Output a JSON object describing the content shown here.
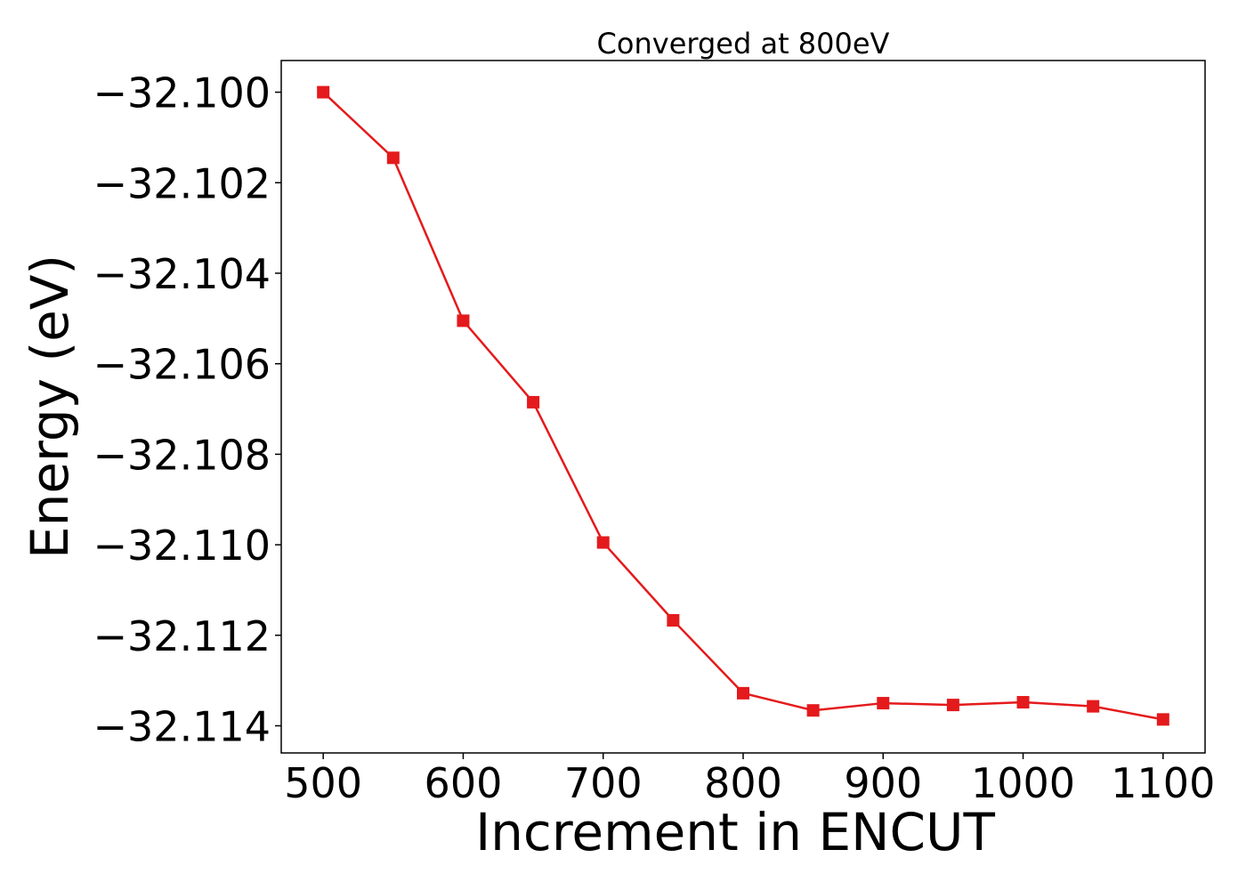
{
  "chart_data": {
    "type": "line",
    "title": "Converged at 800eV",
    "xlabel": "Increment in ENCUT",
    "ylabel": "Energy (eV)",
    "xlim": [
      470,
      1130
    ],
    "ylim": [
      -32.1146,
      -32.0993
    ],
    "xticks": [
      500,
      600,
      700,
      800,
      900,
      1000,
      1100
    ],
    "xtick_labels": [
      "500",
      "600",
      "700",
      "800",
      "900",
      "1000",
      "1100"
    ],
    "yticks": [
      -32.1,
      -32.102,
      -32.104,
      -32.106,
      -32.108,
      -32.11,
      -32.112,
      -32.114
    ],
    "ytick_labels": [
      "−32.100",
      "−32.102",
      "−32.104",
      "−32.106",
      "−32.108",
      "−32.110",
      "−32.112",
      "−32.114"
    ],
    "grid": false,
    "series": [
      {
        "color": "#e41a1c",
        "marker": "square",
        "x": [
          500,
          550,
          600,
          650,
          700,
          750,
          800,
          850,
          900,
          950,
          1000,
          1050,
          1100
        ],
        "y": [
          -32.1,
          -32.10145,
          -32.10505,
          -32.10685,
          -32.10995,
          -32.11167,
          -32.11328,
          -32.11366,
          -32.1135,
          -32.11354,
          -32.11348,
          -32.11357,
          -32.11386
        ]
      }
    ]
  }
}
